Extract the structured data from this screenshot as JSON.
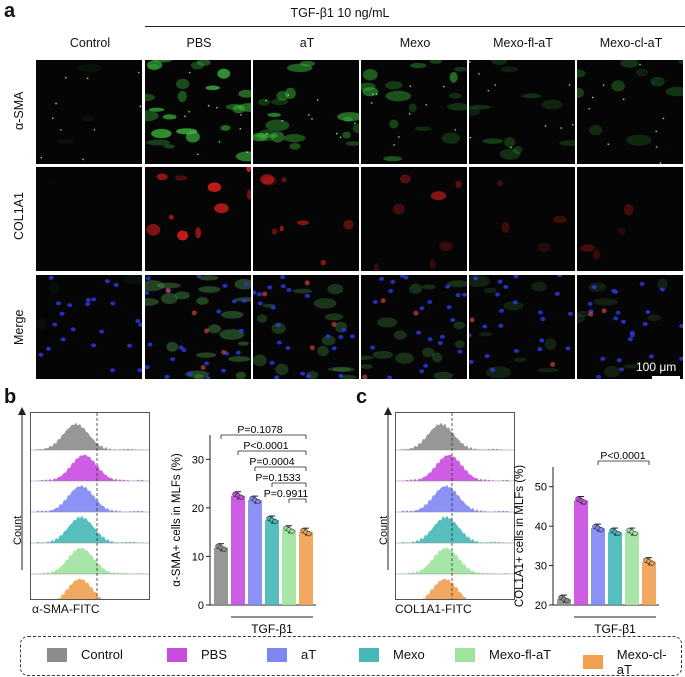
{
  "panel_a": {
    "letter": "a",
    "treatment_header": "TGF-β1 10 ng/mL",
    "columns": [
      "Control",
      "PBS",
      "aT",
      "Mexo",
      "Mexo-fl-aT",
      "Mexo-cl-aT"
    ],
    "rows": [
      "α-SMA",
      "COL1A1",
      "Merge"
    ],
    "scale_bar": "100 μm"
  },
  "panel_b": {
    "letter": "b",
    "hist_xlabel": "α-SMA-FITC",
    "hist_ylabel": "Count",
    "p_values": [
      "P=0.1078",
      "P<0.0001",
      "P=0.0004",
      "P=0.1533",
      "P=0.9911"
    ],
    "group_label": "TGF-β1"
  },
  "panel_c": {
    "letter": "c",
    "hist_xlabel": "COL1A1-FITC",
    "hist_ylabel": "Count",
    "p_values": [
      "P<0.0001"
    ],
    "group_label": "TGF-β1"
  },
  "legend": [
    {
      "label": "Control",
      "color": "#8c8c8c"
    },
    {
      "label": "PBS",
      "color": "#c84be0"
    },
    {
      "label": "aT",
      "color": "#7f86f2"
    },
    {
      "label": "Mexo",
      "color": "#45b7b7"
    },
    {
      "label": "Mexo-fl-aT",
      "color": "#9fe39f"
    },
    {
      "label": "Mexo-cl-aT",
      "color": "#f0a050"
    }
  ],
  "chart_data": [
    {
      "type": "bar",
      "ylabel": "α-SMA+ cells in MLFs (%)",
      "categories": [
        "Control",
        "PBS",
        "aT",
        "Mexo",
        "Mexo-fl-aT",
        "Mexo-cl-aT"
      ],
      "values": [
        11.8,
        22.5,
        21.6,
        17.5,
        15.5,
        15.0
      ],
      "ylim": [
        0,
        35
      ],
      "yticks": [
        0,
        10,
        20,
        30
      ],
      "group_label": "TGF-β1"
    },
    {
      "type": "bar",
      "ylabel": "COL1A1+ cells in MLFs (%)",
      "categories": [
        "Control",
        "PBS",
        "aT",
        "Mexo",
        "Mexo-fl-aT",
        "Mexo-cl-aT"
      ],
      "values": [
        21.5,
        46.5,
        39.5,
        38.5,
        38.5,
        31.0
      ],
      "ylim": [
        20,
        55
      ],
      "yticks": [
        20,
        30,
        40,
        50
      ],
      "group_label": "TGF-β1"
    }
  ]
}
